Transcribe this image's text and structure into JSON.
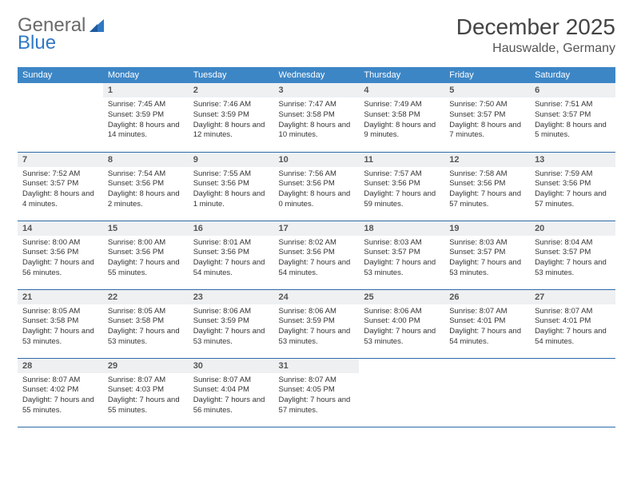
{
  "brand": {
    "word1": "General",
    "word2": "Blue"
  },
  "title": "December 2025",
  "location": "Hauswalde, Germany",
  "colors": {
    "header_bg": "#3d86c6",
    "header_text": "#ffffff",
    "daynum_bg": "#eef0f2",
    "row_border": "#2f6aa8",
    "brand_gray": "#6a6a6a",
    "brand_blue": "#2f78c4"
  },
  "weekdays": [
    "Sunday",
    "Monday",
    "Tuesday",
    "Wednesday",
    "Thursday",
    "Friday",
    "Saturday"
  ],
  "weeks": [
    [
      {
        "n": "",
        "t": ""
      },
      {
        "n": "1",
        "t": "Sunrise: 7:45 AM Sunset: 3:59 PM Daylight: 8 hours and 14 minutes."
      },
      {
        "n": "2",
        "t": "Sunrise: 7:46 AM Sunset: 3:59 PM Daylight: 8 hours and 12 minutes."
      },
      {
        "n": "3",
        "t": "Sunrise: 7:47 AM Sunset: 3:58 PM Daylight: 8 hours and 10 minutes."
      },
      {
        "n": "4",
        "t": "Sunrise: 7:49 AM Sunset: 3:58 PM Daylight: 8 hours and 9 minutes."
      },
      {
        "n": "5",
        "t": "Sunrise: 7:50 AM Sunset: 3:57 PM Daylight: 8 hours and 7 minutes."
      },
      {
        "n": "6",
        "t": "Sunrise: 7:51 AM Sunset: 3:57 PM Daylight: 8 hours and 5 minutes."
      }
    ],
    [
      {
        "n": "7",
        "t": "Sunrise: 7:52 AM Sunset: 3:57 PM Daylight: 8 hours and 4 minutes."
      },
      {
        "n": "8",
        "t": "Sunrise: 7:54 AM Sunset: 3:56 PM Daylight: 8 hours and 2 minutes."
      },
      {
        "n": "9",
        "t": "Sunrise: 7:55 AM Sunset: 3:56 PM Daylight: 8 hours and 1 minute."
      },
      {
        "n": "10",
        "t": "Sunrise: 7:56 AM Sunset: 3:56 PM Daylight: 8 hours and 0 minutes."
      },
      {
        "n": "11",
        "t": "Sunrise: 7:57 AM Sunset: 3:56 PM Daylight: 7 hours and 59 minutes."
      },
      {
        "n": "12",
        "t": "Sunrise: 7:58 AM Sunset: 3:56 PM Daylight: 7 hours and 57 minutes."
      },
      {
        "n": "13",
        "t": "Sunrise: 7:59 AM Sunset: 3:56 PM Daylight: 7 hours and 57 minutes."
      }
    ],
    [
      {
        "n": "14",
        "t": "Sunrise: 8:00 AM Sunset: 3:56 PM Daylight: 7 hours and 56 minutes."
      },
      {
        "n": "15",
        "t": "Sunrise: 8:00 AM Sunset: 3:56 PM Daylight: 7 hours and 55 minutes."
      },
      {
        "n": "16",
        "t": "Sunrise: 8:01 AM Sunset: 3:56 PM Daylight: 7 hours and 54 minutes."
      },
      {
        "n": "17",
        "t": "Sunrise: 8:02 AM Sunset: 3:56 PM Daylight: 7 hours and 54 minutes."
      },
      {
        "n": "18",
        "t": "Sunrise: 8:03 AM Sunset: 3:57 PM Daylight: 7 hours and 53 minutes."
      },
      {
        "n": "19",
        "t": "Sunrise: 8:03 AM Sunset: 3:57 PM Daylight: 7 hours and 53 minutes."
      },
      {
        "n": "20",
        "t": "Sunrise: 8:04 AM Sunset: 3:57 PM Daylight: 7 hours and 53 minutes."
      }
    ],
    [
      {
        "n": "21",
        "t": "Sunrise: 8:05 AM Sunset: 3:58 PM Daylight: 7 hours and 53 minutes."
      },
      {
        "n": "22",
        "t": "Sunrise: 8:05 AM Sunset: 3:58 PM Daylight: 7 hours and 53 minutes."
      },
      {
        "n": "23",
        "t": "Sunrise: 8:06 AM Sunset: 3:59 PM Daylight: 7 hours and 53 minutes."
      },
      {
        "n": "24",
        "t": "Sunrise: 8:06 AM Sunset: 3:59 PM Daylight: 7 hours and 53 minutes."
      },
      {
        "n": "25",
        "t": "Sunrise: 8:06 AM Sunset: 4:00 PM Daylight: 7 hours and 53 minutes."
      },
      {
        "n": "26",
        "t": "Sunrise: 8:07 AM Sunset: 4:01 PM Daylight: 7 hours and 54 minutes."
      },
      {
        "n": "27",
        "t": "Sunrise: 8:07 AM Sunset: 4:01 PM Daylight: 7 hours and 54 minutes."
      }
    ],
    [
      {
        "n": "28",
        "t": "Sunrise: 8:07 AM Sunset: 4:02 PM Daylight: 7 hours and 55 minutes."
      },
      {
        "n": "29",
        "t": "Sunrise: 8:07 AM Sunset: 4:03 PM Daylight: 7 hours and 55 minutes."
      },
      {
        "n": "30",
        "t": "Sunrise: 8:07 AM Sunset: 4:04 PM Daylight: 7 hours and 56 minutes."
      },
      {
        "n": "31",
        "t": "Sunrise: 8:07 AM Sunset: 4:05 PM Daylight: 7 hours and 57 minutes."
      },
      {
        "n": "",
        "t": ""
      },
      {
        "n": "",
        "t": ""
      },
      {
        "n": "",
        "t": ""
      }
    ]
  ]
}
